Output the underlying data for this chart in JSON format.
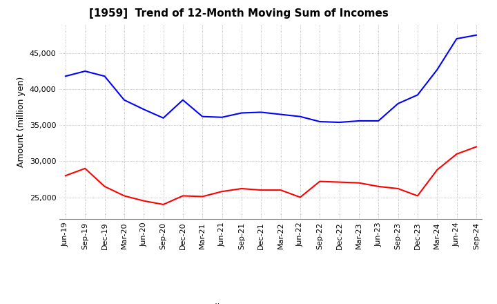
{
  "title": "[1959]  Trend of 12-Month Moving Sum of Incomes",
  "ylabel": "Amount (million yen)",
  "ylim": [
    22000,
    49000
  ],
  "yticks": [
    25000,
    30000,
    35000,
    40000,
    45000
  ],
  "x_labels": [
    "Jun-19",
    "Sep-19",
    "Dec-19",
    "Mar-20",
    "Jun-20",
    "Sep-20",
    "Dec-20",
    "Mar-21",
    "Jun-21",
    "Sep-21",
    "Dec-21",
    "Mar-22",
    "Jun-22",
    "Sep-22",
    "Dec-22",
    "Mar-23",
    "Jun-23",
    "Sep-23",
    "Dec-23",
    "Mar-24",
    "Jun-24",
    "Sep-24"
  ],
  "ordinary_income": [
    41800,
    42500,
    41800,
    38500,
    37200,
    36000,
    38500,
    36200,
    36100,
    36700,
    36800,
    36500,
    36200,
    35500,
    35400,
    35600,
    35600,
    38000,
    39200,
    42700,
    47000,
    47500
  ],
  "net_income": [
    28000,
    29000,
    26500,
    25200,
    24500,
    24000,
    25200,
    25100,
    25800,
    26200,
    26000,
    26000,
    25000,
    27200,
    27100,
    27000,
    26500,
    26200,
    25200,
    28800,
    31000,
    32000
  ],
  "ordinary_color": "#0000FF",
  "net_color": "#FF0000",
  "grid_color": "#AAAAAA",
  "background_color": "#FFFFFF",
  "title_fontsize": 11,
  "label_fontsize": 9,
  "tick_fontsize": 8,
  "legend_fontsize": 9
}
